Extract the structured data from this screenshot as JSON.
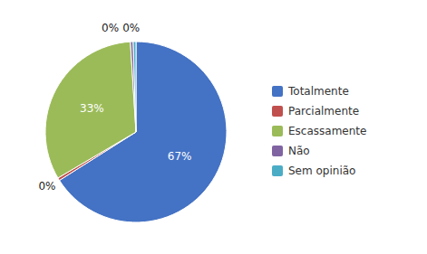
{
  "chart_data": {
    "type": "pie",
    "categories": [
      "Totalmente",
      "Parcialmente",
      "Escassamente",
      "Não",
      "Sem opinião"
    ],
    "values": [
      67,
      0.5,
      33,
      0.5,
      0.5
    ],
    "value_labels": [
      "67%",
      "0%",
      "33%",
      "0%",
      "0%"
    ],
    "colors": [
      "#4472C4",
      "#C0504D",
      "#9BBB59",
      "#8064A2",
      "#4BACC6"
    ],
    "data_labels": true,
    "legend": "right"
  }
}
